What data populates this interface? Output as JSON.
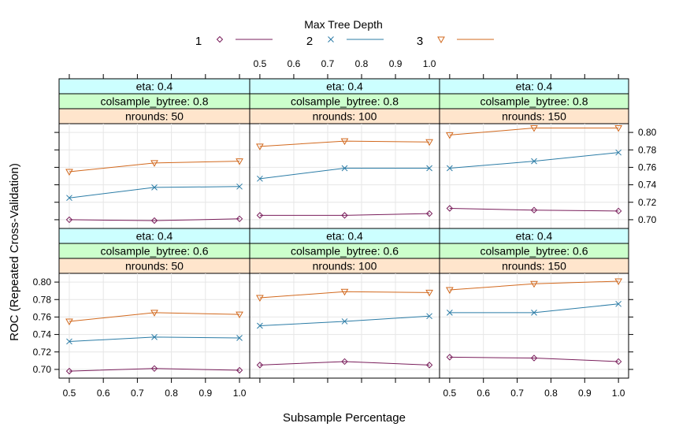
{
  "chart_data": {
    "type": "line",
    "layout": "lattice 3 columns x 2 rows",
    "xlabel": "Subsample Percentage",
    "ylabel": "ROC (Repeated Cross-Validation)",
    "legend": {
      "title": "Max Tree Depth",
      "placement": "top",
      "entries": [
        {
          "label": "1",
          "marker": "diamond",
          "color": "#7a1f5c"
        },
        {
          "label": "2",
          "marker": "cross",
          "color": "#2b7ca6"
        },
        {
          "label": "3",
          "marker": "triangle-down",
          "color": "#d2691e"
        }
      ]
    },
    "x": [
      0.5,
      0.75,
      1.0
    ],
    "xlim": [
      0.47,
      1.03
    ],
    "ylim": [
      0.69,
      0.81
    ],
    "xticks": [
      "0.5",
      "0.6",
      "0.7",
      "0.8",
      "0.9",
      "1.0"
    ],
    "yticks": [
      "0.70",
      "0.72",
      "0.74",
      "0.76",
      "0.78",
      "0.80"
    ],
    "grid": true,
    "panels": [
      {
        "strips": [
          "eta: 0.4",
          "colsample_bytree: 0.8",
          "nrounds:  50"
        ],
        "series": [
          {
            "name": "1",
            "values": [
              0.7,
              0.699,
              0.701
            ]
          },
          {
            "name": "2",
            "values": [
              0.725,
              0.737,
              0.738
            ]
          },
          {
            "name": "3",
            "values": [
              0.755,
              0.765,
              0.767
            ]
          }
        ]
      },
      {
        "strips": [
          "eta: 0.4",
          "colsample_bytree: 0.8",
          "nrounds: 100"
        ],
        "series": [
          {
            "name": "1",
            "values": [
              0.705,
              0.705,
              0.707
            ]
          },
          {
            "name": "2",
            "values": [
              0.747,
              0.759,
              0.759
            ]
          },
          {
            "name": "3",
            "values": [
              0.784,
              0.79,
              0.789
            ]
          }
        ]
      },
      {
        "strips": [
          "eta: 0.4",
          "colsample_bytree: 0.8",
          "nrounds: 150"
        ],
        "series": [
          {
            "name": "1",
            "values": [
              0.713,
              0.711,
              0.71
            ]
          },
          {
            "name": "2",
            "values": [
              0.759,
              0.767,
              0.777
            ]
          },
          {
            "name": "3",
            "values": [
              0.797,
              0.805,
              0.805
            ]
          }
        ]
      },
      {
        "strips": [
          "eta: 0.4",
          "colsample_bytree: 0.6",
          "nrounds:  50"
        ],
        "series": [
          {
            "name": "1",
            "values": [
              0.698,
              0.701,
              0.699
            ]
          },
          {
            "name": "2",
            "values": [
              0.732,
              0.737,
              0.736
            ]
          },
          {
            "name": "3",
            "values": [
              0.755,
              0.765,
              0.763
            ]
          }
        ]
      },
      {
        "strips": [
          "eta: 0.4",
          "colsample_bytree: 0.6",
          "nrounds: 100"
        ],
        "series": [
          {
            "name": "1",
            "values": [
              0.705,
              0.709,
              0.705
            ]
          },
          {
            "name": "2",
            "values": [
              0.75,
              0.755,
              0.761
            ]
          },
          {
            "name": "3",
            "values": [
              0.782,
              0.789,
              0.788
            ]
          }
        ]
      },
      {
        "strips": [
          "eta: 0.4",
          "colsample_bytree: 0.6",
          "nrounds: 150"
        ],
        "series": [
          {
            "name": "1",
            "values": [
              0.714,
              0.713,
              0.709
            ]
          },
          {
            "name": "2",
            "values": [
              0.765,
              0.765,
              0.775
            ]
          },
          {
            "name": "3",
            "values": [
              0.791,
              0.798,
              0.801
            ]
          }
        ]
      }
    ]
  }
}
